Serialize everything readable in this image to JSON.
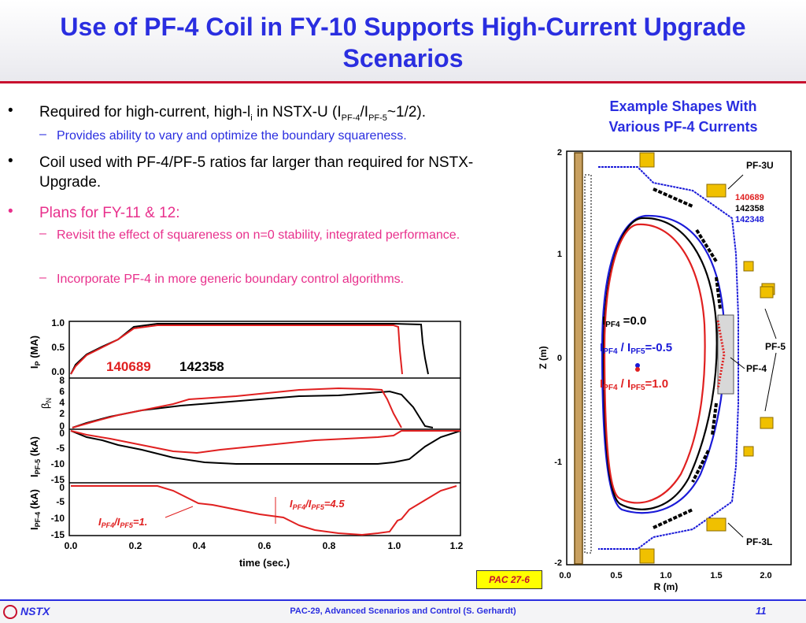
{
  "slide": {
    "title_line1": "Use of PF-4 Coil in FY-10 Supports High-Current Upgrade",
    "title_line2": "Scenarios"
  },
  "bullets": {
    "b1_pre": "Required for high-current, high-l",
    "b1_sub1": "i",
    "b1_mid": " in NSTX-U   (I",
    "b1_sub2": "PF-4",
    "b1_mid2": "/I",
    "b1_sub3": "PF-5",
    "b1_post": "~1/2).",
    "b1_sub": "Provides ability to vary and optimize the boundary squareness.",
    "b2": "Coil used with PF-4/PF-5 ratios far larger than required for NSTX-Upgrade.",
    "b3": "Plans for FY-11 & 12:",
    "b3_sub1": "Revisit the effect of squareness on n=0 stability, integrated performance.",
    "b3_sub2": "Incorporate PF-4 in more generic boundary control algorithms."
  },
  "right_title": {
    "line1": "Example Shapes With",
    "line2": "Various PF-4 Currents"
  },
  "equilibrium": {
    "shots": [
      "140689",
      "142358",
      "142348"
    ],
    "colors": {
      "140689": "#e02020",
      "142358": "#000000",
      "142348": "#1a1ad8"
    },
    "labels": {
      "pf3u": "PF-3U",
      "pf5": "PF-5",
      "pf4": "PF-4",
      "pf3l": "PF-3L"
    },
    "ann_ipf4": "I",
    "ann_ipf4_sub": "PF4",
    "ann_ipf4_val": " =0.0",
    "ann_r1_a": "I",
    "ann_r1_sa": "PF4",
    "ann_r1_b": " / I",
    "ann_r1_sb": "PF5",
    "ann_r1_c": "=-0.5",
    "ann_r2_a": "I",
    "ann_r2_sa": "PF4",
    "ann_r2_b": " / I",
    "ann_r2_sb": "PF5",
    "ann_r2_c": "=1.0",
    "xlabel": "R (m)",
    "ylabel": "Z (m)",
    "xticks": [
      "0.0",
      "0.5",
      "1.0",
      "1.5",
      "2.0"
    ],
    "yticks": [
      "2",
      "1",
      "0",
      "-1",
      "-2"
    ]
  },
  "timetraces": {
    "xlabel": "time (sec.)",
    "xticks": [
      "0.0",
      "0.2",
      "0.4",
      "0.6",
      "0.8",
      "1.0",
      "1.2"
    ],
    "panel1": {
      "label": "I",
      "label_sub": "P",
      "label_unit": " (MA)",
      "yticks": [
        "1.0",
        "0.5",
        "0.0"
      ]
    },
    "panel2": {
      "label": "β",
      "label_sub": "N",
      "yticks": [
        "8",
        "6",
        "4",
        "2",
        "0"
      ]
    },
    "panel3": {
      "label": "I",
      "label_sub": "PF-5",
      "label_unit": " (kA)",
      "yticks": [
        "0",
        "-5",
        "-10",
        "-15"
      ]
    },
    "panel4": {
      "label": "I",
      "label_sub": "PF-4",
      "label_unit": " (kA)",
      "yticks": [
        "0",
        "-5",
        "-10",
        "-15"
      ]
    },
    "legend_red": "140689",
    "legend_black": "142358",
    "ann1_a": "I",
    "ann1_sa": "PF4",
    "ann1_b": "/I",
    "ann1_sb": "PF5",
    "ann1_c": "=1.",
    "ann2_a": "I",
    "ann2_sa": "PF4",
    "ann2_b": "/I",
    "ann2_sb": "PF5",
    "ann2_c": "=4.5"
  },
  "pac_label": "PAC 27-6",
  "footer": {
    "logo": "NSTX",
    "center": "PAC-29, Advanced Scenarios and Control (S. Gerhardt)",
    "page": "11"
  }
}
